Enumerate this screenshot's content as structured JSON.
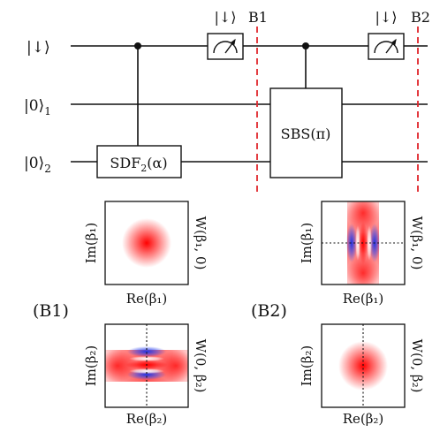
{
  "circuit": {
    "qubits": [
      {
        "label": "|↓⟩"
      },
      {
        "label": "|0⟩",
        "subscript": "1"
      },
      {
        "label": "|0⟩",
        "subscript": "2"
      }
    ],
    "gates": {
      "sdf": {
        "name": "SDF",
        "subscript": "2",
        "arg": "(α)"
      },
      "sbs": {
        "label": "SBS(π)"
      }
    },
    "measurements": [
      {
        "label": "|↓⟩"
      },
      {
        "label": "|↓⟩"
      }
    ],
    "barriers": [
      {
        "label": "B1"
      },
      {
        "label": "B2"
      }
    ],
    "barrier_color": "#e0262c"
  },
  "panels": {
    "b1": {
      "label": "(B1)",
      "top": {
        "xlabel": "Re(β₁)",
        "ylabel": "Im(β₁)",
        "wlabel": "W(β₁, 0)"
      },
      "bottom": {
        "xlabel": "Re(β₂)",
        "ylabel": "Im(β₂)",
        "wlabel": "W(0, β₂)"
      }
    },
    "b2": {
      "label": "(B2)",
      "top": {
        "xlabel": "Re(β₁)",
        "ylabel": "Im(β₁)",
        "wlabel": "W(β₁, 0)"
      },
      "bottom": {
        "xlabel": "Re(β₂)",
        "ylabel": "Im(β₂)",
        "wlabel": "W(0, β₂)"
      }
    },
    "colors": {
      "positive": "#ff0000",
      "negative": "#2b3fe0"
    }
  }
}
